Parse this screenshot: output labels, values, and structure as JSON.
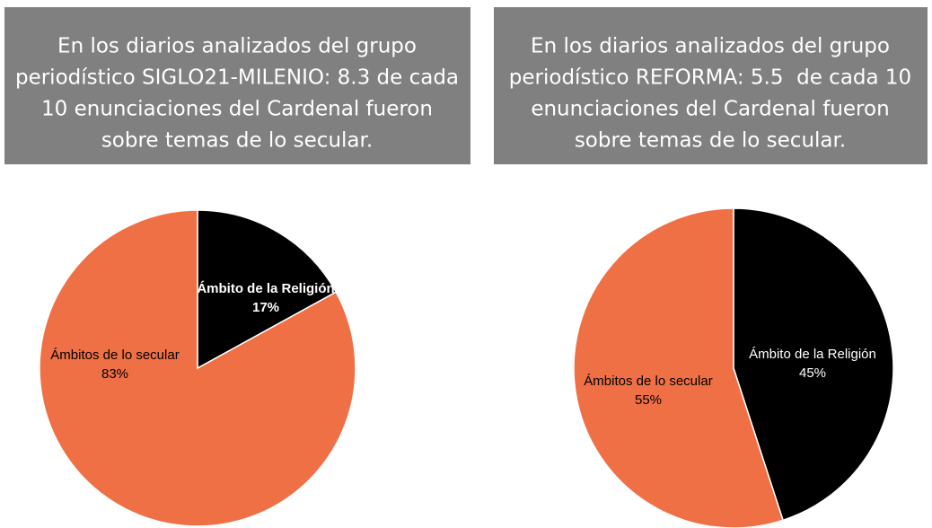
{
  "chart_data": [
    {
      "type": "pie",
      "title": [
        "En los diarios analizados del grupo",
        "periodístico SIGLO21-MILENIO: 8.3 de cada",
        "10 enunciaciones del Cardenal fueron",
        "sobre temas de lo secular."
      ],
      "categories": [
        "Ámbito de la Religión",
        "Ámbitos de lo secular"
      ],
      "values": [
        17,
        83
      ],
      "value_labels": [
        "17%",
        "83%"
      ],
      "colors": [
        "#000000",
        "#f07046"
      ]
    },
    {
      "type": "pie",
      "title": [
        "En los diarios analizados del grupo",
        "periodístico REFORMA: 5.5  de cada 10",
        "enunciaciones del Cardenal fueron",
        "sobre temas de lo secular."
      ],
      "categories": [
        "Ámbito de la Religión",
        "Ámbitos de lo secular"
      ],
      "values": [
        45,
        55
      ],
      "value_labels": [
        "45%",
        "55%"
      ],
      "colors": [
        "#000000",
        "#f07046"
      ]
    }
  ]
}
